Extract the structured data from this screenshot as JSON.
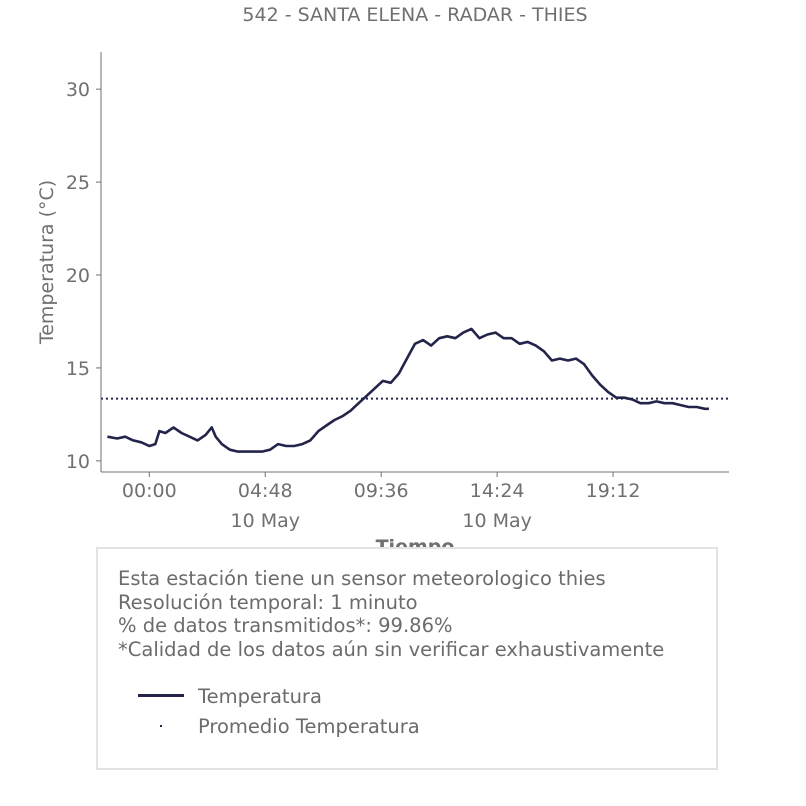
{
  "chart_data": {
    "type": "line",
    "title": "542 - SANTA ELENA - RADAR - THIES",
    "xlabel": "Tiempo",
    "ylabel": "Temperatura (°C)",
    "ylim": [
      9.4,
      32
    ],
    "xlim": [
      "09 May 22:00",
      "11 May 00:00"
    ],
    "y_ticks": [
      10,
      15,
      20,
      25,
      30
    ],
    "x_ticks": [
      {
        "time": "10 May 00:00",
        "label": "00:00",
        "sublabel": ""
      },
      {
        "time": "10 May 04:48",
        "label": "04:48",
        "sublabel": "10 May"
      },
      {
        "time": "10 May 09:36",
        "label": "09:36",
        "sublabel": ""
      },
      {
        "time": "10 May 14:24",
        "label": "14:24",
        "sublabel": "10 May"
      },
      {
        "time": "10 May 19:12",
        "label": "19:12",
        "sublabel": ""
      }
    ],
    "grid": false,
    "series": [
      {
        "name": "Temperatura",
        "color": "#23244a",
        "style": "solid",
        "x": [
          "09 May 22:16",
          "09 May 22:40",
          "09 May 23:00",
          "09 May 23:20",
          "09 May 23:40",
          "10 May 00:00",
          "10 May 00:15",
          "10 May 00:25",
          "10 May 00:40",
          "10 May 01:00",
          "10 May 01:20",
          "10 May 01:40",
          "10 May 02:00",
          "10 May 02:20",
          "10 May 02:35",
          "10 May 02:45",
          "10 May 03:00",
          "10 May 03:20",
          "10 May 03:40",
          "10 May 04:00",
          "10 May 04:20",
          "10 May 04:40",
          "10 May 05:00",
          "10 May 05:20",
          "10 May 05:40",
          "10 May 06:00",
          "10 May 06:20",
          "10 May 06:40",
          "10 May 07:00",
          "10 May 07:20",
          "10 May 07:40",
          "10 May 08:00",
          "10 May 08:20",
          "10 May 08:40",
          "10 May 09:00",
          "10 May 09:20",
          "10 May 09:40",
          "10 May 10:00",
          "10 May 10:20",
          "10 May 10:40",
          "10 May 11:00",
          "10 May 11:20",
          "10 May 11:40",
          "10 May 12:00",
          "10 May 12:20",
          "10 May 12:40",
          "10 May 13:00",
          "10 May 13:20",
          "10 May 13:40",
          "10 May 14:00",
          "10 May 14:20",
          "10 May 14:40",
          "10 May 15:00",
          "10 May 15:20",
          "10 May 15:40",
          "10 May 16:00",
          "10 May 16:20",
          "10 May 16:40",
          "10 May 17:00",
          "10 May 17:20",
          "10 May 17:40",
          "10 May 18:00",
          "10 May 18:20",
          "10 May 18:40",
          "10 May 19:00",
          "10 May 19:20",
          "10 May 19:40",
          "10 May 20:00",
          "10 May 20:20",
          "10 May 20:40",
          "10 May 21:00",
          "10 May 21:20",
          "10 May 21:40",
          "10 May 22:00",
          "10 May 22:20",
          "10 May 22:40",
          "10 May 23:00",
          "10 May 23:10"
        ],
        "y": [
          11.3,
          11.2,
          11.3,
          11.1,
          11.0,
          10.8,
          10.9,
          11.6,
          11.5,
          11.8,
          11.5,
          11.3,
          11.1,
          11.4,
          11.8,
          11.3,
          10.9,
          10.6,
          10.5,
          10.5,
          10.5,
          10.5,
          10.6,
          10.9,
          10.8,
          10.8,
          10.9,
          11.1,
          11.6,
          11.9,
          12.2,
          12.4,
          12.7,
          13.1,
          13.5,
          13.9,
          14.3,
          14.2,
          14.7,
          15.5,
          16.3,
          16.5,
          16.2,
          16.6,
          16.7,
          16.6,
          16.9,
          17.1,
          16.6,
          16.8,
          16.9,
          16.6,
          16.6,
          16.3,
          16.4,
          16.2,
          15.9,
          15.4,
          15.5,
          15.4,
          15.5,
          15.2,
          14.6,
          14.1,
          13.7,
          13.4,
          13.4,
          13.3,
          13.1,
          13.1,
          13.2,
          13.1,
          13.1,
          13.0,
          12.9,
          12.9,
          12.8,
          12.8
        ]
      },
      {
        "name": "Promedio Temperatura",
        "color": "#23244a",
        "style": "dotted",
        "value": 13.35
      }
    ]
  },
  "info": {
    "lines": [
      "Esta estación tiene un sensor meteorologico thies",
      "Resolución temporal: 1 minuto",
      "% de datos transmitidos*: 99.86%",
      "*Calidad de los datos aún sin verificar exhaustivamente"
    ]
  }
}
